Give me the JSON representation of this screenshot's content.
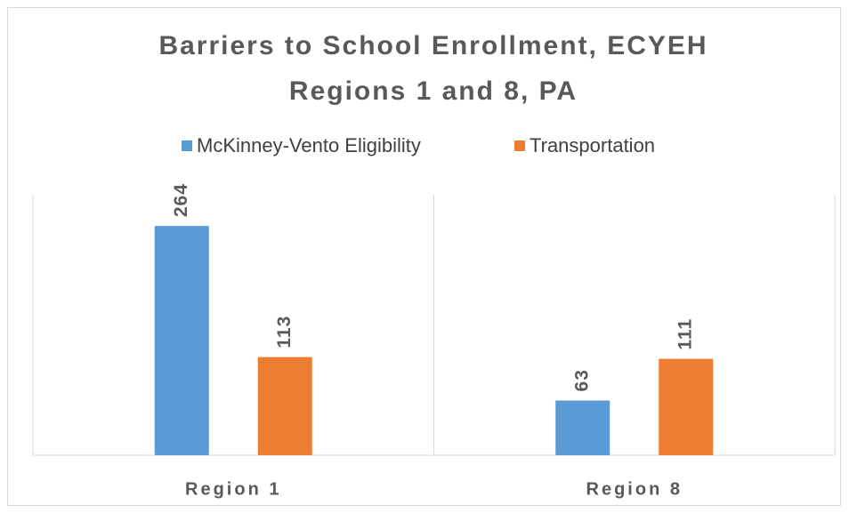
{
  "chart_data": {
    "type": "bar",
    "title": [
      "Barriers to School Enrollment, ECYEH",
      "Regions 1 and 8, PA"
    ],
    "categories": [
      "Region 1",
      "Region 8"
    ],
    "series": [
      {
        "name": "McKinney-Vento Eligibility",
        "color": "#5b9bd5",
        "values": [
          264,
          63
        ]
      },
      {
        "name": "Transportation",
        "color": "#ed7d31",
        "values": [
          113,
          111
        ]
      }
    ],
    "ylim": [
      0,
      300
    ],
    "legend": "top"
  }
}
